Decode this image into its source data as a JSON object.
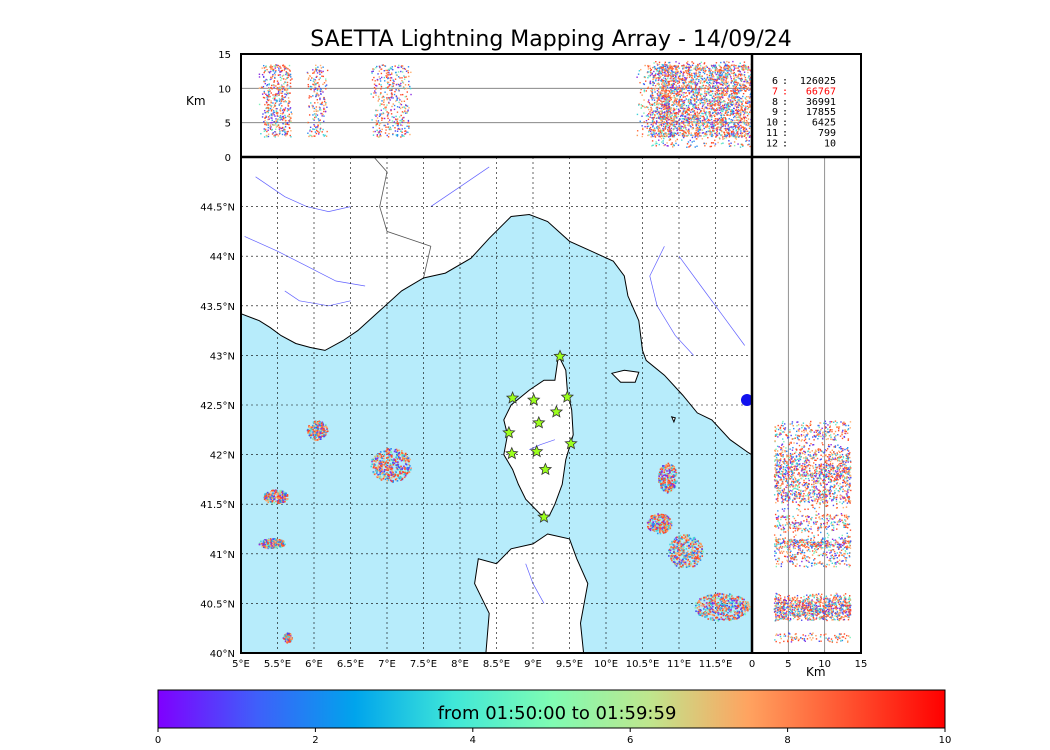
{
  "title": "SAETTA Lightning Mapping Array - 14/09/24",
  "colors": {
    "sea": "#b7ecfb",
    "coast": "#000000",
    "rivers": "#3b3bff",
    "borders": "#555555",
    "station_fill": "#9bff1c",
    "stats_highlight": "#ff0000",
    "grid": "#000000"
  },
  "map": {
    "lon_range": [
      5.0,
      12.0
    ],
    "lat_range": [
      40.0,
      45.0
    ],
    "lon_ticks": [
      "5°E",
      "5.5°E",
      "6°E",
      "6.5°E",
      "7°E",
      "7.5°E",
      "8°E",
      "8.5°E",
      "9°E",
      "9.5°E",
      "10°E",
      "10.5°E",
      "11°E",
      "11.5°E"
    ],
    "lon_tick_values": [
      5.0,
      5.5,
      6.0,
      6.5,
      7.0,
      7.5,
      8.0,
      8.5,
      9.0,
      9.5,
      10.0,
      10.5,
      11.0,
      11.5
    ],
    "lat_ticks": [
      "40°N",
      "40.5°N",
      "41°N",
      "41.5°N",
      "42°N",
      "42.5°N",
      "43°N",
      "43.5°N",
      "44°N",
      "44.5°N"
    ],
    "lat_tick_values": [
      40.0,
      40.5,
      41.0,
      41.5,
      42.0,
      42.5,
      43.0,
      43.5,
      44.0,
      44.5
    ],
    "stations": [
      [
        9.37,
        42.99
      ],
      [
        8.72,
        42.57
      ],
      [
        9.01,
        42.55
      ],
      [
        9.47,
        42.58
      ],
      [
        9.32,
        42.43
      ],
      [
        9.08,
        42.32
      ],
      [
        8.67,
        42.22
      ],
      [
        9.52,
        42.11
      ],
      [
        8.71,
        42.01
      ],
      [
        9.05,
        42.03
      ],
      [
        9.17,
        41.85
      ],
      [
        9.15,
        41.37
      ]
    ],
    "cells": [
      {
        "lon": 6.04,
        "lat": 42.25,
        "rx": 0.14,
        "ry": 0.1
      },
      {
        "lon": 7.05,
        "lat": 41.9,
        "rx": 0.28,
        "ry": 0.17
      },
      {
        "lon": 5.47,
        "lat": 41.58,
        "rx": 0.17,
        "ry": 0.07
      },
      {
        "lon": 5.42,
        "lat": 41.11,
        "rx": 0.18,
        "ry": 0.05
      },
      {
        "lon": 5.63,
        "lat": 40.16,
        "rx": 0.06,
        "ry": 0.05
      },
      {
        "lon": 10.84,
        "lat": 41.77,
        "rx": 0.13,
        "ry": 0.15
      },
      {
        "lon": 10.72,
        "lat": 41.31,
        "rx": 0.17,
        "ry": 0.1
      },
      {
        "lon": 11.08,
        "lat": 41.03,
        "rx": 0.24,
        "ry": 0.17
      },
      {
        "lon": 11.58,
        "lat": 40.47,
        "rx": 0.38,
        "ry": 0.14
      }
    ]
  },
  "altitude_axis": {
    "unit": "Km",
    "range": [
      0,
      15
    ],
    "ticks": [
      "0",
      "5",
      "10",
      "15"
    ],
    "tick_values": [
      0,
      5,
      10,
      15
    ],
    "gridlines": [
      5,
      10
    ]
  },
  "stats": [
    {
      "key": "6",
      "value": "126025",
      "highlight": false
    },
    {
      "key": "7",
      "value": "66767",
      "highlight": true
    },
    {
      "key": "8",
      "value": "36991",
      "highlight": false
    },
    {
      "key": "9",
      "value": "17855",
      "highlight": false
    },
    {
      "key": "10",
      "value": "6425",
      "highlight": false
    },
    {
      "key": "11",
      "value": "799",
      "highlight": false
    },
    {
      "key": "12",
      "value": "10",
      "highlight": false
    }
  ],
  "colorbar": {
    "label": "from 01:50:00 to 01:59:59",
    "range": [
      0,
      10
    ],
    "ticks": [
      "0",
      "2",
      "4",
      "6",
      "8",
      "10"
    ],
    "tick_values": [
      0,
      2,
      4,
      6,
      8,
      10
    ],
    "colors": [
      "#7f00ff",
      "#3f5ffa",
      "#00a4ec",
      "#3fe7d8",
      "#7ffcb3",
      "#bfe68d",
      "#ffa360",
      "#ff5330",
      "#ff0000"
    ]
  }
}
